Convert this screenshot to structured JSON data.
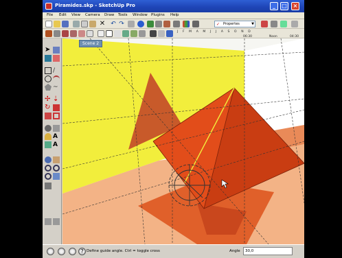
{
  "window": {
    "title": "Piramides.skp - SketchUp Pro",
    "minimize": "_",
    "maximize": "□",
    "close": "×"
  },
  "menu": [
    "File",
    "Edit",
    "View",
    "Camera",
    "Draw",
    "Tools",
    "Window",
    "Plugins",
    "Help"
  ],
  "toolbar": {
    "style_dropdown": "Propertes",
    "shadow_months": "J F M A M J J A S O N D",
    "time_left": "06:30",
    "time_mid": "Noon",
    "time_right": "04:30"
  },
  "scene_tab": "Scene 2",
  "status": {
    "hint": "Define guide angle.  Ctrl = toggle cross",
    "vcb_label": "Angle",
    "vcb_value": "30,0"
  },
  "colors": {
    "wall_yellow": "#f2ee3c",
    "pyramid_red": "#d8421a",
    "floor_salmon": "#f3b386",
    "title_blue": "#1f46b8"
  }
}
